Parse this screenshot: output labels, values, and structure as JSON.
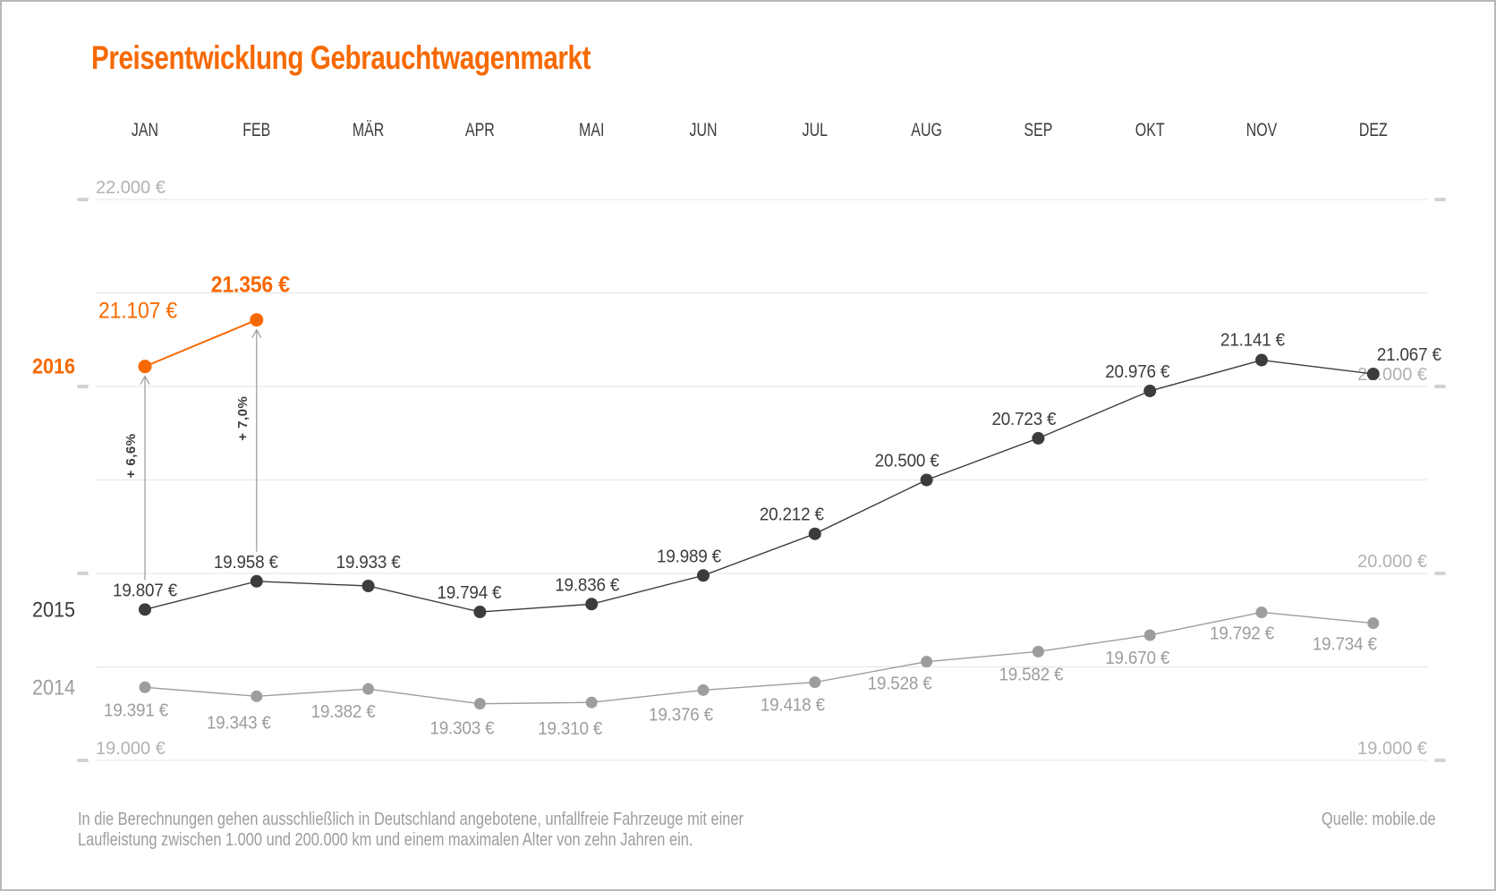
{
  "colors": {
    "accent": "#f66900",
    "dark": "#3c3c3b",
    "gray": "#9d9d9c",
    "grid": "#e4e4e4",
    "tick": "#d2d2d1",
    "axis_label": "#b3b2b2",
    "arrow": "#a0a09f",
    "border": "#b9b9b9",
    "background": "#ffffff"
  },
  "chart_data": {
    "type": "line",
    "title": "Preisentwicklung Gebrauchtwagenmarkt",
    "categories": [
      "JAN",
      "FEB",
      "MÄR",
      "APR",
      "MAI",
      "JUN",
      "JUL",
      "AUG",
      "SEP",
      "OKT",
      "NOV",
      "DEZ"
    ],
    "grid": "horizontal",
    "y_axis": {
      "min": 19000,
      "max": 22000,
      "gridline_step": 500,
      "unit": "€",
      "left_labels": [
        {
          "value": 22000,
          "label": "22.000 €"
        },
        {
          "value": 19000,
          "label": "19.000 €"
        }
      ],
      "right_labels": [
        {
          "value": 21000,
          "label": "21.000 €"
        },
        {
          "value": 20000,
          "label": "20.000 €"
        },
        {
          "value": 19000,
          "label": "19.000 €"
        }
      ],
      "tick_values": [
        22000,
        21000,
        20000,
        19000
      ]
    },
    "series": [
      {
        "name": "2014",
        "color_key": "gray",
        "stroke_width": 1.4,
        "point_radius": 6.5,
        "year_label_bold": false,
        "label_size": 20.5,
        "points": [
          {
            "month": "JAN",
            "value": 19391,
            "label": "19.391 €",
            "dx": -10,
            "dy": 32
          },
          {
            "month": "FEB",
            "value": 19343,
            "label": "19.343 €",
            "dx": -20,
            "dy": 36
          },
          {
            "month": "MÄR",
            "value": 19382,
            "label": "19.382 €",
            "dx": -28,
            "dy": 32
          },
          {
            "month": "APR",
            "value": 19303,
            "label": "19.303 €",
            "dx": -20,
            "dy": 34
          },
          {
            "month": "MAI",
            "value": 19310,
            "label": "19.310 €",
            "dx": -24,
            "dy": 36
          },
          {
            "month": "JUN",
            "value": 19376,
            "label": "19.376 €",
            "dx": -25,
            "dy": 34
          },
          {
            "month": "JUL",
            "value": 19418,
            "label": "19.418 €",
            "dx": -25,
            "dy": 32
          },
          {
            "month": "AUG",
            "value": 19528,
            "label": "19.528 €",
            "dx": -30,
            "dy": 31
          },
          {
            "month": "SEP",
            "value": 19582,
            "label": "19.582 €",
            "dx": -8,
            "dy": 32
          },
          {
            "month": "OKT",
            "value": 19670,
            "label": "19.670 €",
            "dx": -14,
            "dy": 32
          },
          {
            "month": "NOV",
            "value": 19792,
            "label": "19.792 €",
            "dx": -22,
            "dy": 30
          },
          {
            "month": "DEZ",
            "value": 19734,
            "label": "19.734 €",
            "dx": -32,
            "dy": 30
          }
        ]
      },
      {
        "name": "2015",
        "color_key": "dark",
        "stroke_width": 1.4,
        "point_radius": 7,
        "year_label_bold": false,
        "label_size": 20.5,
        "points": [
          {
            "month": "JAN",
            "value": 19807,
            "label": "19.807 €",
            "dx": 0,
            "dy": -15
          },
          {
            "month": "FEB",
            "value": 19958,
            "label": "19.958 €",
            "dx": -12,
            "dy": -15
          },
          {
            "month": "MÄR",
            "value": 19933,
            "label": "19.933 €",
            "dx": 0,
            "dy": -20
          },
          {
            "month": "APR",
            "value": 19794,
            "label": "19.794 €",
            "dx": -12,
            "dy": -15
          },
          {
            "month": "MAI",
            "value": 19836,
            "label": "19.836 €",
            "dx": -5,
            "dy": -15
          },
          {
            "month": "JUN",
            "value": 19989,
            "label": "19.989 €",
            "dx": -16,
            "dy": -15
          },
          {
            "month": "JUL",
            "value": 20212,
            "label": "20.212 €",
            "dx": -26,
            "dy": -15
          },
          {
            "month": "AUG",
            "value": 20500,
            "label": "20.500 €",
            "dx": -22,
            "dy": -15
          },
          {
            "month": "SEP",
            "value": 20723,
            "label": "20.723 €",
            "dx": -16,
            "dy": -15
          },
          {
            "month": "OKT",
            "value": 20976,
            "label": "20.976 €",
            "dx": -14,
            "dy": -15
          },
          {
            "month": "NOV",
            "value": 21141,
            "label": "21.141 €",
            "dx": -10,
            "dy": -16
          },
          {
            "month": "DEZ",
            "value": 21067,
            "label": "21.067 €",
            "dx": 40,
            "dy": -15
          }
        ]
      },
      {
        "name": "2016",
        "color_key": "accent",
        "stroke_width": 2,
        "point_radius": 7.5,
        "year_label_bold": true,
        "label_size": 25,
        "points": [
          {
            "month": "JAN",
            "value": 21107,
            "label": "21.107 €",
            "dx": -8,
            "dy": -54,
            "bold": false
          },
          {
            "month": "FEB",
            "value": 21356,
            "label": "21.356 €",
            "dx": -7,
            "dy": -31,
            "bold": true
          }
        ]
      }
    ],
    "annotations": [
      {
        "month_index": 0,
        "text": "+ 6,6%",
        "from_value": 19807,
        "to_value": 21107
      },
      {
        "month_index": 1,
        "text": "+ 7,0%",
        "from_value": 19958,
        "to_value": 21356
      }
    ],
    "footnote_lines": [
      "In die Berechnungen gehen ausschließlich in Deutschland angebotene, unfallfreie Fahrzeuge mit einer",
      "Laufleistung zwischen 1.000 und 200.000 km und einem maximalen Alter von zehn Jahren ein."
    ],
    "source": "Quelle: mobile.de"
  }
}
